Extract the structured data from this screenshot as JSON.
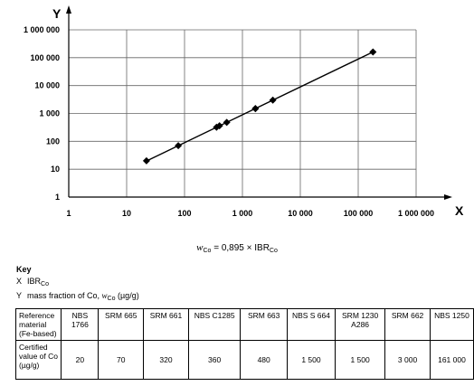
{
  "chart_data": {
    "type": "scatter",
    "x_axis_letter": "X",
    "y_axis_letter": "Y",
    "x_scale": "log",
    "y_scale": "log",
    "xlim": [
      1,
      1000000
    ],
    "ylim": [
      1,
      1000000
    ],
    "x_tick_labels": [
      "1",
      "10",
      "100",
      "1 000",
      "10 000",
      "100 000",
      "1 000 000"
    ],
    "y_tick_labels": [
      "1",
      "10",
      "100",
      "1 000",
      "10 000",
      "100 000",
      "1 000 000"
    ],
    "grid": true,
    "points": [
      {
        "x": 22,
        "y": 20
      },
      {
        "x": 78,
        "y": 70
      },
      {
        "x": 357,
        "y": 320
      },
      {
        "x": 402,
        "y": 360
      },
      {
        "x": 536,
        "y": 480
      },
      {
        "x": 1676,
        "y": 1500
      },
      {
        "x": 1676,
        "y": 1500
      },
      {
        "x": 3352,
        "y": 3000
      },
      {
        "x": 179888,
        "y": 161000
      }
    ],
    "fit_line": {
      "slope": 0.895,
      "x_range": [
        22,
        179888
      ]
    }
  },
  "equation": {
    "w": "w",
    "w_sub": "Co",
    "middle": " = 0,895 × IBR",
    "ibr_sub": "Co"
  },
  "key": {
    "title": "Key",
    "x_symbol": "X",
    "x_text": "IBR",
    "x_sub": "Co",
    "y_symbol": "Y",
    "y_text": "mass fraction of Co, ",
    "y_w": "w",
    "y_w_sub": "Co",
    "y_unit": " (µg/g)"
  },
  "table": {
    "row1_header": "Reference material (Fe-based)",
    "materials": [
      "NBS 1766",
      "SRM 665",
      "SRM 661",
      "NBS C1285",
      "SRM 663",
      "NBS S 664",
      "SRM 1230 A286",
      "SRM 662",
      "NBS 1250"
    ],
    "row2_header": "Certified value of Co (µg/g)",
    "values": [
      "20",
      "70",
      "320",
      "360",
      "480",
      "1 500",
      "1 500",
      "3 000",
      "161 000"
    ]
  }
}
